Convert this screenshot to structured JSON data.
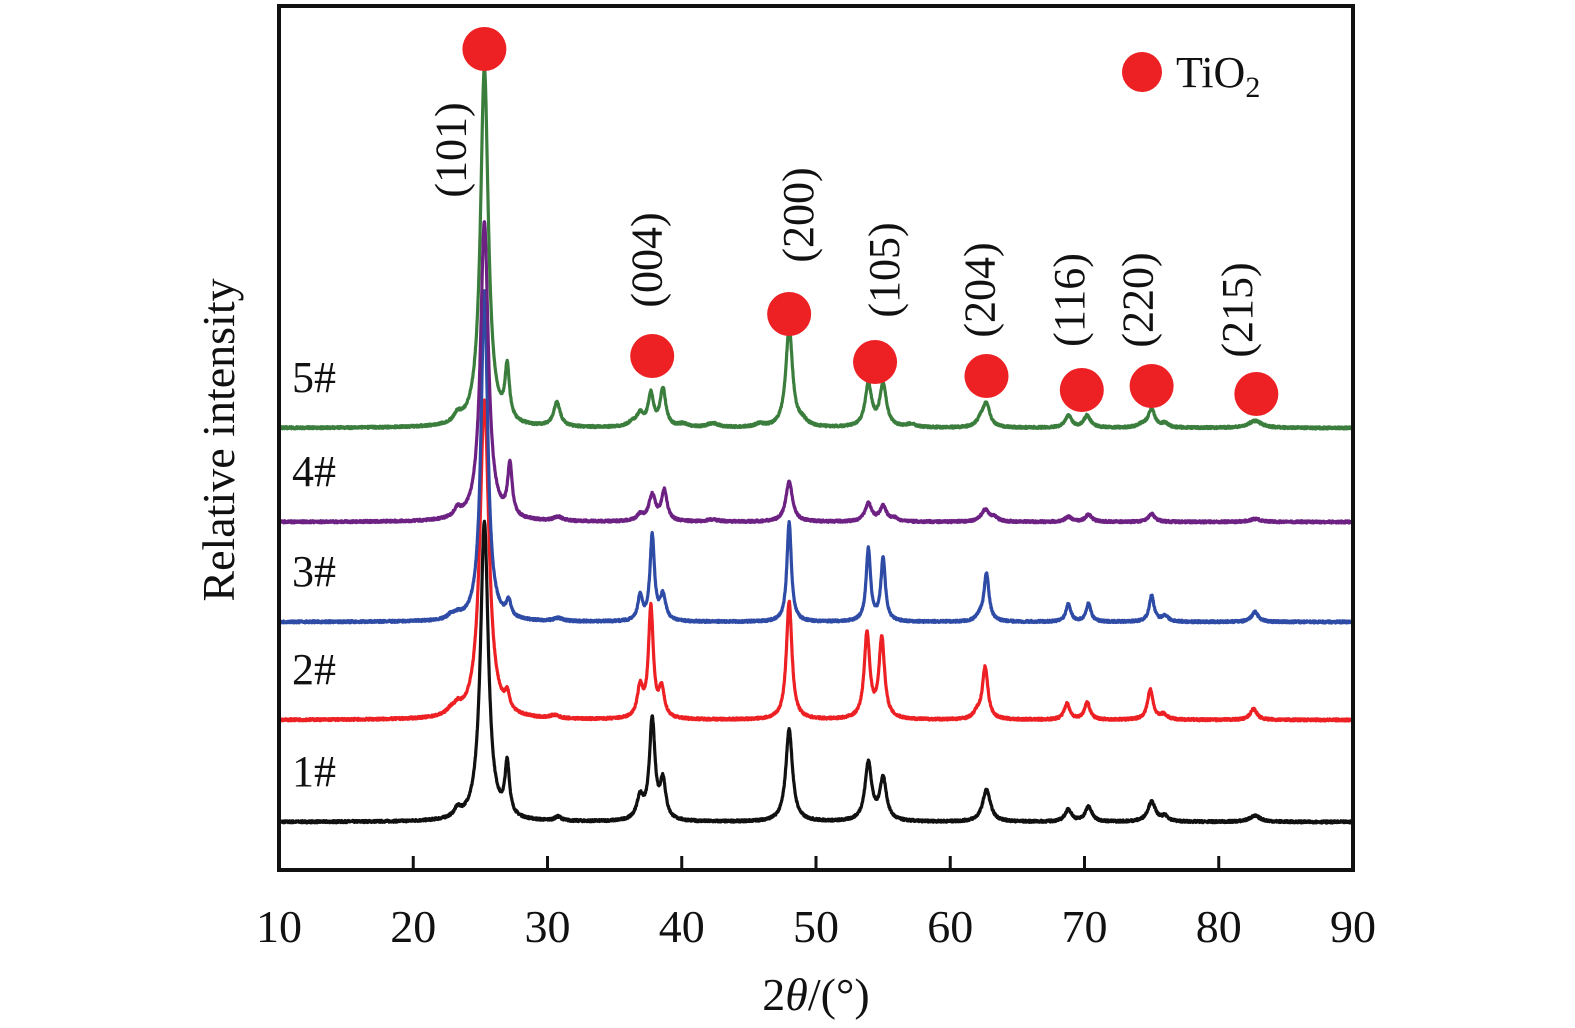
{
  "chart_data": {
    "type": "line",
    "title": "",
    "xlabel": "2θ/(°)",
    "xlabel_parts": {
      "prefix": "2",
      "theta": "θ",
      "suffix": "/(°)"
    },
    "ylabel": "Relative intensity",
    "xlim": [
      10,
      90
    ],
    "x_ticks": [
      10,
      20,
      30,
      40,
      50,
      60,
      70,
      80,
      90
    ],
    "x_tick_labels": [
      "10",
      "20",
      "30",
      "40",
      "50",
      "60",
      "70",
      "80",
      "90"
    ],
    "y_ticks": [],
    "grid": false,
    "legend": {
      "position": "top-right",
      "entries": [
        {
          "label": "TiO",
          "subscript": "2",
          "marker": "filled-circle",
          "color": "#ed2024"
        }
      ]
    },
    "series": [
      {
        "name": "1#",
        "color": "#111111",
        "offset": 0,
        "peaks": [
          [
            23.3,
            0.3,
            8
          ],
          [
            25.3,
            0.35,
            300
          ],
          [
            27.0,
            0.2,
            52
          ],
          [
            30.8,
            0.3,
            4
          ],
          [
            36.9,
            0.3,
            22
          ],
          [
            37.8,
            0.25,
            100
          ],
          [
            38.6,
            0.25,
            38
          ],
          [
            48.0,
            0.3,
            92
          ],
          [
            53.9,
            0.3,
            58
          ],
          [
            55.0,
            0.3,
            42
          ],
          [
            62.7,
            0.35,
            32
          ],
          [
            68.8,
            0.3,
            12
          ],
          [
            70.3,
            0.3,
            15
          ],
          [
            75.0,
            0.35,
            20
          ],
          [
            76.0,
            0.3,
            5
          ],
          [
            82.7,
            0.5,
            6
          ]
        ]
      },
      {
        "name": "2#",
        "color": "#ed2024",
        "offset": 1,
        "peaks": [
          [
            22.8,
            0.4,
            5
          ],
          [
            23.3,
            0.3,
            7
          ],
          [
            25.3,
            0.4,
            320
          ],
          [
            27.0,
            0.2,
            16
          ],
          [
            30.5,
            0.4,
            3
          ],
          [
            36.9,
            0.25,
            30
          ],
          [
            37.7,
            0.22,
            110
          ],
          [
            38.5,
            0.25,
            28
          ],
          [
            48.0,
            0.25,
            118
          ],
          [
            53.8,
            0.25,
            85
          ],
          [
            54.9,
            0.25,
            80
          ],
          [
            62.0,
            0.3,
            6
          ],
          [
            62.6,
            0.25,
            52
          ],
          [
            68.7,
            0.25,
            16
          ],
          [
            70.2,
            0.25,
            17
          ],
          [
            74.9,
            0.25,
            30
          ],
          [
            75.9,
            0.3,
            5
          ],
          [
            82.6,
            0.3,
            11
          ]
        ]
      },
      {
        "name": "3#",
        "color": "#2e4ba6",
        "offset": 2,
        "peaks": [
          [
            22.8,
            0.3,
            4
          ],
          [
            23.3,
            0.3,
            4
          ],
          [
            25.3,
            0.3,
            330
          ],
          [
            27.1,
            0.2,
            16
          ],
          [
            30.8,
            0.4,
            3
          ],
          [
            36.9,
            0.2,
            25
          ],
          [
            37.8,
            0.2,
            85
          ],
          [
            38.6,
            0.25,
            25
          ],
          [
            48.0,
            0.2,
            100
          ],
          [
            53.9,
            0.2,
            72
          ],
          [
            55.0,
            0.2,
            63
          ],
          [
            62.2,
            0.3,
            5
          ],
          [
            62.7,
            0.22,
            48
          ],
          [
            68.8,
            0.22,
            18
          ],
          [
            70.3,
            0.22,
            18
          ],
          [
            75.0,
            0.22,
            26
          ],
          [
            76.0,
            0.3,
            6
          ],
          [
            82.7,
            0.3,
            10
          ]
        ]
      },
      {
        "name": "4#",
        "color": "#6d2183",
        "offset": 3,
        "peaks": [
          [
            23.3,
            0.3,
            8
          ],
          [
            25.3,
            0.35,
            300
          ],
          [
            27.2,
            0.2,
            52
          ],
          [
            30.8,
            0.4,
            4
          ],
          [
            36.9,
            0.3,
            6
          ],
          [
            37.8,
            0.3,
            26
          ],
          [
            38.7,
            0.25,
            30
          ],
          [
            42.3,
            0.5,
            2
          ],
          [
            48.0,
            0.3,
            40
          ],
          [
            53.9,
            0.3,
            18
          ],
          [
            55.0,
            0.3,
            15
          ],
          [
            55.9,
            0.3,
            3
          ],
          [
            62.6,
            0.35,
            12
          ],
          [
            63.3,
            0.3,
            4
          ],
          [
            68.8,
            0.3,
            5
          ],
          [
            70.3,
            0.3,
            7
          ],
          [
            75.0,
            0.3,
            8
          ],
          [
            82.7,
            0.5,
            3
          ]
        ]
      },
      {
        "name": "5#",
        "color": "#3a7d3c",
        "offset": 4,
        "peaks": [
          [
            23.3,
            0.3,
            8
          ],
          [
            25.3,
            0.35,
            360
          ],
          [
            27.0,
            0.2,
            52
          ],
          [
            30.7,
            0.3,
            24
          ],
          [
            36.3,
            0.4,
            4
          ],
          [
            36.9,
            0.3,
            12
          ],
          [
            37.7,
            0.25,
            32
          ],
          [
            38.6,
            0.25,
            38
          ],
          [
            40.1,
            0.4,
            3
          ],
          [
            42.3,
            0.5,
            4
          ],
          [
            45.8,
            0.4,
            3
          ],
          [
            48.0,
            0.3,
            100
          ],
          [
            49.0,
            0.4,
            5
          ],
          [
            53.9,
            0.3,
            42
          ],
          [
            55.0,
            0.3,
            42
          ],
          [
            57.1,
            0.4,
            3
          ],
          [
            62.3,
            0.35,
            8
          ],
          [
            62.7,
            0.3,
            22
          ],
          [
            68.8,
            0.3,
            12
          ],
          [
            70.2,
            0.3,
            12
          ],
          [
            74.3,
            0.4,
            3
          ],
          [
            75.0,
            0.3,
            18
          ],
          [
            76.0,
            0.3,
            4
          ],
          [
            82.7,
            0.6,
            7
          ]
        ]
      }
    ],
    "marker_color": "#ed2024",
    "annotations": [
      {
        "hkl": "(101)",
        "two_theta": 25.3
      },
      {
        "hkl": "(004)",
        "two_theta": 37.8
      },
      {
        "hkl": "(200)",
        "two_theta": 48.0
      },
      {
        "hkl": "(105)",
        "two_theta": 54.5
      },
      {
        "hkl": "(204)",
        "two_theta": 62.7
      },
      {
        "hkl": "(116)",
        "two_theta": 69.7
      },
      {
        "hkl": "(220)",
        "two_theta": 75.0
      },
      {
        "hkl": "(215)",
        "two_theta": 82.8
      }
    ]
  }
}
